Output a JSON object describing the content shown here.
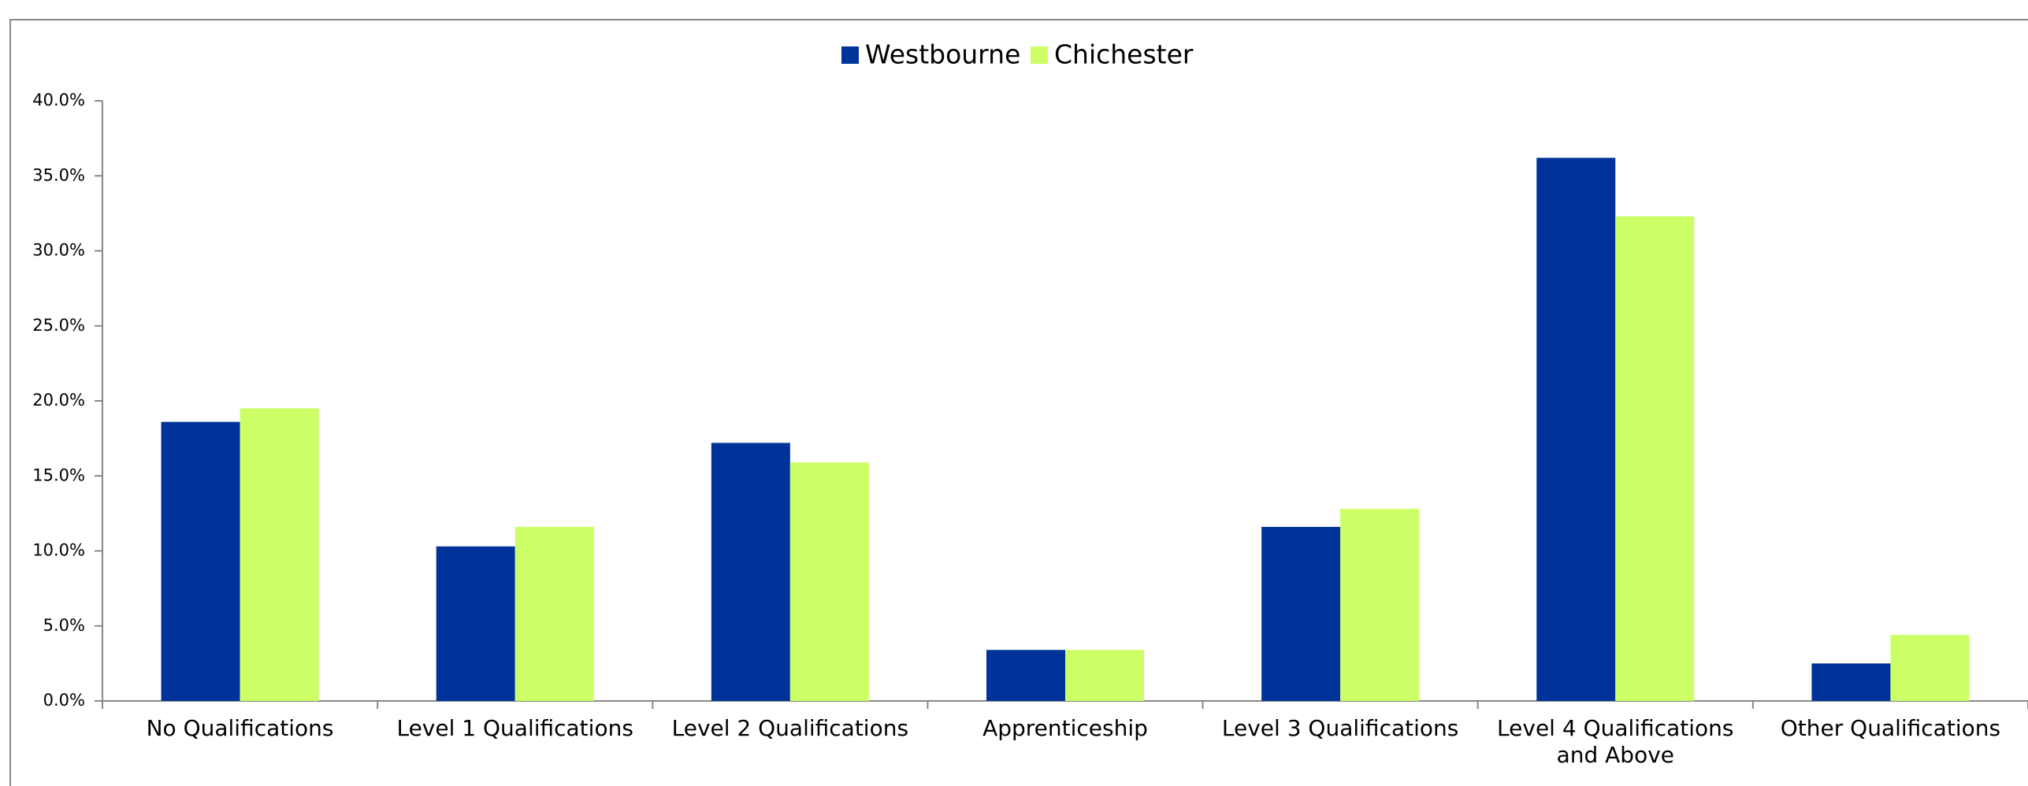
{
  "chart_data": {
    "type": "bar",
    "categories": [
      "No Qualifications",
      "Level 1 Qualifications",
      "Level 2 Qualifications",
      "Apprenticeship",
      "Level 3 Qualifications",
      "Level 4 Qualifications and Above",
      "Other Qualifications"
    ],
    "series": [
      {
        "name": "Westbourne",
        "color": "#003399",
        "values": [
          18.6,
          10.3,
          17.2,
          3.4,
          11.6,
          36.2,
          2.5
        ]
      },
      {
        "name": "Chichester",
        "color": "#ccff66",
        "values": [
          19.5,
          11.6,
          15.9,
          3.4,
          12.8,
          32.3,
          4.4
        ]
      }
    ],
    "ylim": [
      0,
      40
    ],
    "yticks": [
      {
        "value": 0,
        "label": "0.0%"
      },
      {
        "value": 5,
        "label": "5.0%"
      },
      {
        "value": 10,
        "label": "10.0%"
      },
      {
        "value": 15,
        "label": "15.0%"
      },
      {
        "value": 20,
        "label": "20.0%"
      },
      {
        "value": 25,
        "label": "25.0%"
      },
      {
        "value": 30,
        "label": "30.0%"
      },
      {
        "value": 35,
        "label": "35.0%"
      },
      {
        "value": 40,
        "label": "40.0%"
      }
    ],
    "legend": "top",
    "grid": false
  }
}
